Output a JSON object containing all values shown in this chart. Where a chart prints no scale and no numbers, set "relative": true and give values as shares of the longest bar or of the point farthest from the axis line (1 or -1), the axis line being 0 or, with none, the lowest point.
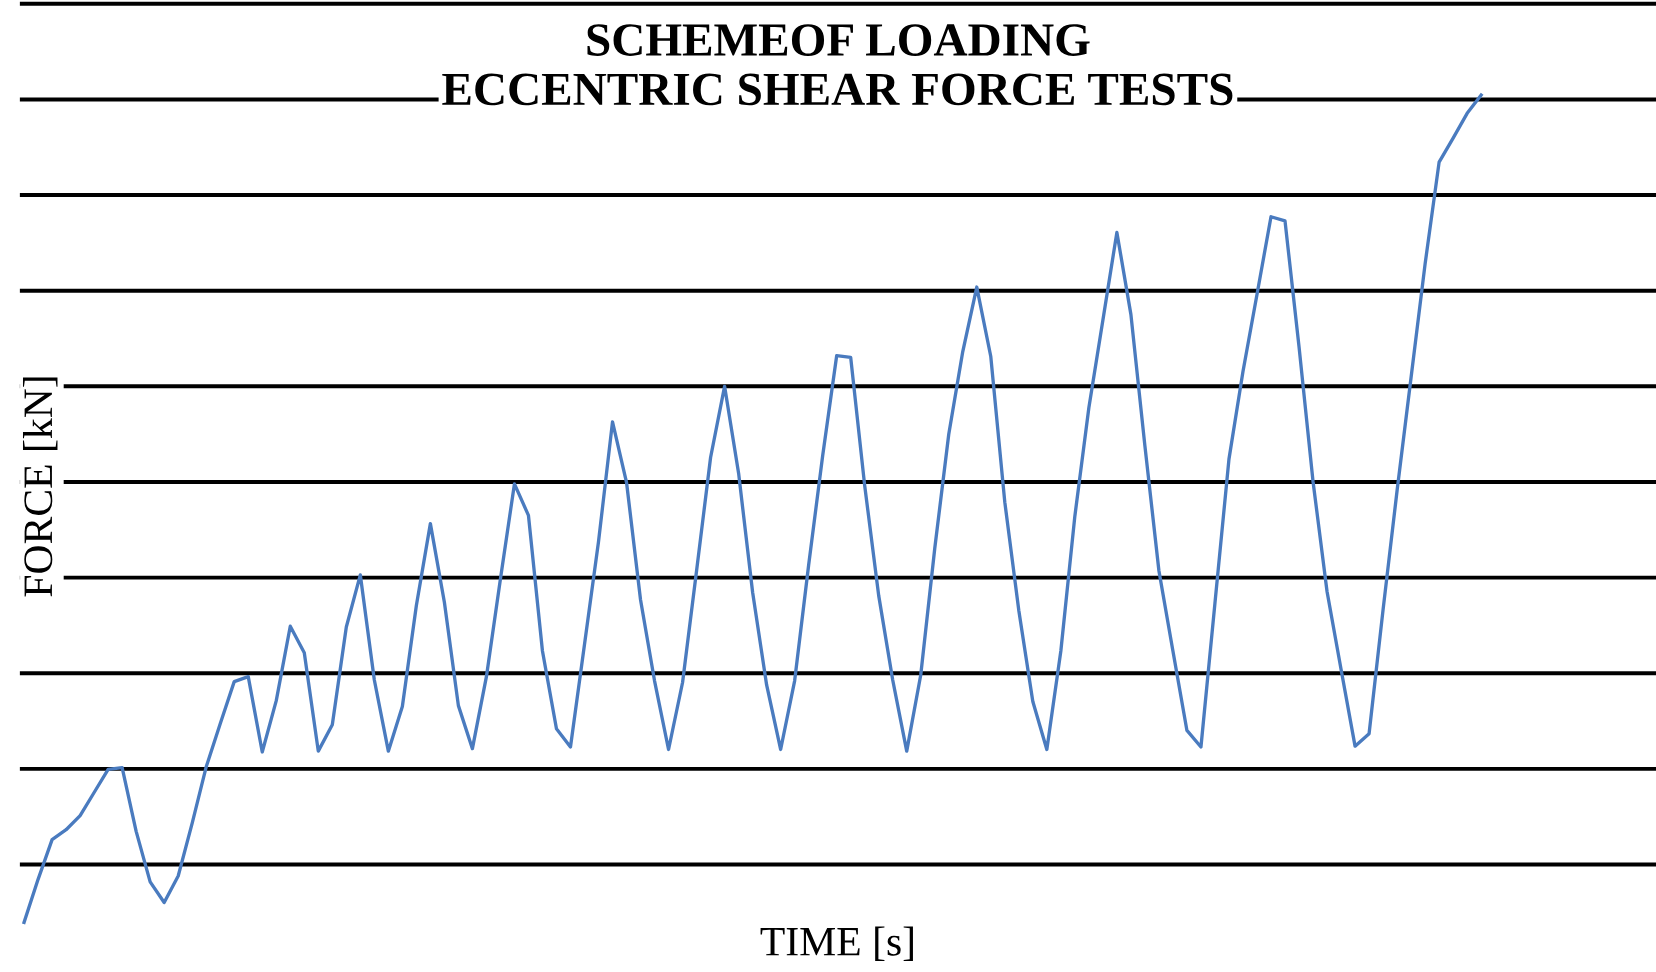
{
  "chart_data": {
    "type": "line",
    "title": "SCHEMEOF LOADING\nECCENTRIC SHEAR FORCE TESTS",
    "xlabel": "TIME [s]",
    "ylabel": "FORCE [kN]",
    "relative": true,
    "grid": "y",
    "tick_labels": false,
    "line_style": "solid",
    "marker": "none",
    "categories": [
      null,
      null,
      null,
      null,
      null,
      null,
      null,
      null,
      null,
      null,
      null,
      null,
      null,
      null,
      null,
      null,
      null,
      null,
      null,
      null,
      null,
      null,
      null,
      null,
      null,
      null,
      null,
      null,
      null,
      null,
      null,
      null,
      null,
      null,
      null,
      null,
      null,
      null,
      null,
      null,
      null,
      null,
      null,
      null,
      null,
      null,
      null,
      null,
      null,
      null,
      null,
      null,
      null,
      null,
      null,
      null,
      null,
      null,
      null,
      null,
      null,
      null,
      null,
      null,
      null,
      null,
      null,
      null,
      null,
      null,
      null,
      null,
      null,
      null,
      null,
      null,
      null,
      null,
      null,
      null,
      null,
      null,
      null,
      null,
      null,
      null,
      null,
      null,
      null,
      null,
      null,
      null,
      null,
      null,
      null,
      null,
      null,
      null,
      null,
      null,
      null,
      null,
      null,
      null,
      null
    ],
    "series": [
      {
        "color": "#4a7bbf",
        "values": [
          0,
          0.052,
          0.1,
          0.112,
          0.129,
          0.157,
          0.185,
          0.187,
          0.11,
          0.049,
          0.024,
          0.056,
          0.12,
          0.188,
          0.24,
          0.291,
          0.297,
          0.206,
          0.268,
          0.358,
          0.326,
          0.207,
          0.239,
          0.357,
          0.42,
          0.293,
          0.207,
          0.261,
          0.383,
          0.482,
          0.387,
          0.262,
          0.21,
          0.297,
          0.415,
          0.53,
          0.492,
          0.328,
          0.234,
          0.212,
          0.336,
          0.46,
          0.605,
          0.532,
          0.39,
          0.292,
          0.209,
          0.29,
          0.425,
          0.562,
          0.648,
          0.543,
          0.399,
          0.287,
          0.209,
          0.292,
          0.432,
          0.564,
          0.685,
          0.683,
          0.528,
          0.395,
          0.293,
          0.207,
          0.299,
          0.452,
          0.59,
          0.69,
          0.768,
          0.684,
          0.508,
          0.377,
          0.267,
          0.209,
          0.328,
          0.491,
          0.622,
          0.728,
          0.834,
          0.735,
          0.576,
          0.425,
          0.328,
          0.232,
          0.212,
          0.386,
          0.56,
          0.666,
          0.759,
          0.853,
          0.848,
          0.696,
          0.533,
          0.4,
          0.306,
          0.213,
          0.228,
          0.378,
          0.522,
          0.659,
          0.796,
          0.919,
          0.948,
          0.978,
          1.0
        ]
      }
    ]
  }
}
